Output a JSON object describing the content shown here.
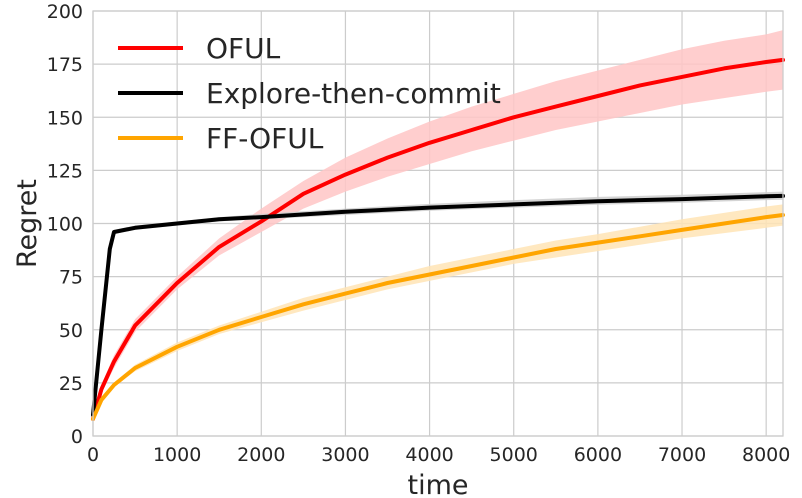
{
  "chart_data": {
    "type": "line",
    "title": "",
    "xlabel": "time",
    "ylabel": "Regret",
    "xlim": [
      0,
      8200
    ],
    "ylim": [
      0,
      200
    ],
    "xticks": [
      0,
      1000,
      2000,
      3000,
      4000,
      5000,
      6000,
      7000,
      8000
    ],
    "yticks": [
      0,
      25,
      50,
      75,
      100,
      125,
      150,
      175,
      200
    ],
    "grid": true,
    "legend_position": "upper-left",
    "series": [
      {
        "name": "OFUL",
        "color": "#ff0000",
        "band_color": "#ffc6c6",
        "x": [
          0,
          100,
          250,
          500,
          1000,
          1500,
          2000,
          2500,
          3000,
          3500,
          4000,
          4500,
          5000,
          5500,
          6000,
          6500,
          7000,
          7500,
          8000,
          8200
        ],
        "y": [
          8,
          22,
          35,
          52,
          72,
          89,
          101,
          114,
          123,
          131,
          138,
          144,
          150,
          155,
          160,
          165,
          169,
          173,
          176,
          177
        ],
        "lower": [
          7,
          20,
          32,
          49,
          69,
          85,
          96,
          107,
          115,
          122,
          128,
          134,
          139,
          144,
          148,
          152,
          156,
          159,
          162,
          163
        ],
        "upper": [
          9,
          24,
          38,
          55,
          75,
          93,
          107,
          120,
          131,
          140,
          148,
          155,
          161,
          167,
          172,
          177,
          182,
          186,
          189,
          191
        ]
      },
      {
        "name": "Explore-then-commit",
        "color": "#000000",
        "band_color": "#cccccc",
        "x": [
          0,
          100,
          200,
          250,
          500,
          1000,
          1500,
          2000,
          3000,
          4000,
          5000,
          6000,
          7000,
          8000,
          8200
        ],
        "y": [
          10,
          50,
          88,
          96,
          98,
          100,
          102,
          103,
          105.5,
          107.5,
          109,
          110.5,
          111.5,
          112.8,
          113
        ],
        "lower": [
          9,
          49,
          87,
          95,
          97,
          99,
          101,
          102,
          104,
          106,
          107.5,
          108.8,
          109.8,
          111,
          111.2
        ],
        "upper": [
          11,
          51,
          89,
          97,
          99,
          101,
          103,
          104.5,
          107,
          109.2,
          111,
          112.5,
          113.5,
          114.8,
          115
        ]
      },
      {
        "name": "FF-OFUL",
        "color": "#ffa500",
        "band_color": "#ffe4b5",
        "x": [
          0,
          100,
          250,
          500,
          1000,
          1500,
          2000,
          2500,
          3000,
          3500,
          4000,
          4500,
          5000,
          5500,
          6000,
          6500,
          7000,
          7500,
          8000,
          8200
        ],
        "y": [
          8,
          17,
          24,
          32,
          42,
          50,
          56,
          62,
          67,
          72,
          76,
          80,
          84,
          88,
          91,
          94,
          97,
          100,
          103,
          104
        ],
        "lower": [
          7,
          16,
          23,
          30.5,
          40,
          48,
          53.5,
          59,
          64,
          69,
          73,
          77,
          81,
          84,
          87,
          90,
          93,
          95.5,
          98,
          99
        ],
        "upper": [
          9,
          18,
          25,
          33.5,
          44,
          52,
          58.5,
          65,
          70,
          75,
          80,
          84,
          88,
          92,
          95,
          98.5,
          102,
          105,
          108,
          109
        ]
      }
    ]
  }
}
